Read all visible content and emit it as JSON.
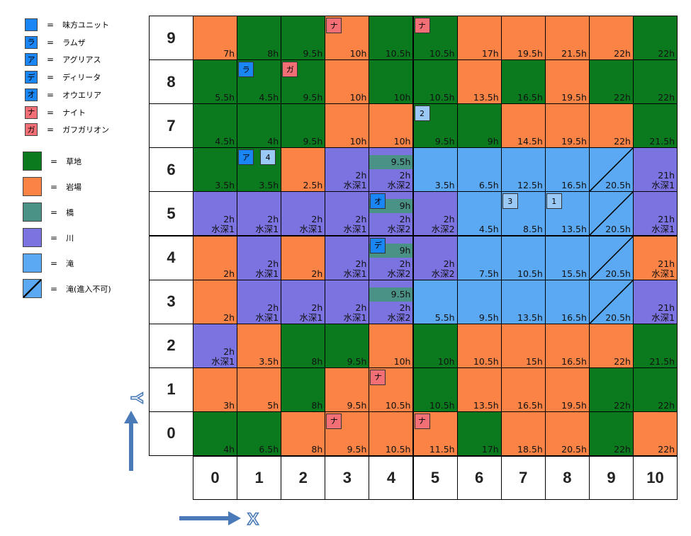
{
  "colors": {
    "grass": "#0b7a1f",
    "rock": "#fb8345",
    "bridge": "#4a9186",
    "river": "#7b73e0",
    "waterfall": "#5ba8f3",
    "ally": "#1a86f5",
    "enemy": "#f27075",
    "num_unit": "#9bc9f6",
    "arrow": "#4a7bb8"
  },
  "legend": {
    "units": [
      {
        "swatch_text": "",
        "swatch": "ally",
        "label": "味方ユニット"
      },
      {
        "swatch_text": "ラ",
        "swatch": "ally",
        "label": "ラムザ"
      },
      {
        "swatch_text": "ア",
        "swatch": "ally",
        "label": "アグリアス"
      },
      {
        "swatch_text": "デ",
        "swatch": "ally",
        "label": "ディリータ"
      },
      {
        "swatch_text": "オ",
        "swatch": "ally",
        "label": "オウエリア"
      },
      {
        "swatch_text": "ナ",
        "swatch": "enemy",
        "label": "ナイト"
      },
      {
        "swatch_text": "ガ",
        "swatch": "enemy",
        "label": "ガフガリオン"
      }
    ],
    "terrain": [
      {
        "swatch": "grass",
        "label": "草地"
      },
      {
        "swatch": "rock",
        "label": "岩場"
      },
      {
        "swatch": "bridge",
        "label": "橋"
      },
      {
        "swatch": "river",
        "label": "川"
      },
      {
        "swatch": "waterfall",
        "label": "滝"
      },
      {
        "swatch": "blocked",
        "label": "滝(進入不可)"
      }
    ],
    "eq": "="
  },
  "axis": {
    "x_label": "X",
    "y_label": "Y",
    "cols": [
      "0",
      "1",
      "2",
      "3",
      "4",
      "5",
      "6",
      "7",
      "8",
      "9",
      "10"
    ],
    "rows": [
      "9",
      "8",
      "7",
      "6",
      "5",
      "4",
      "3",
      "2",
      "1",
      "0"
    ]
  },
  "grid": [
    [
      {
        "t": "rock",
        "h": "7h"
      },
      {
        "t": "grass",
        "h": "8h"
      },
      {
        "t": "grass",
        "h": "9.5h"
      },
      {
        "t": "rock",
        "h": "10h",
        "u": {
          "k": "enemy",
          "s": "ナ"
        }
      },
      {
        "t": "grass",
        "h": "10.5h"
      },
      {
        "t": "grass",
        "h": "10.5h",
        "u": {
          "k": "enemy",
          "s": "ナ"
        }
      },
      {
        "t": "rock",
        "h": "17h"
      },
      {
        "t": "rock",
        "h": "19.5h"
      },
      {
        "t": "rock",
        "h": "21.5h"
      },
      {
        "t": "rock",
        "h": "22h"
      },
      {
        "t": "grass",
        "h": "22h"
      }
    ],
    [
      {
        "t": "grass",
        "h": "5.5h"
      },
      {
        "t": "grass",
        "h": "4.5h",
        "u": {
          "k": "ally",
          "s": "ラ"
        }
      },
      {
        "t": "grass",
        "h": "9.5h",
        "u": {
          "k": "enemy",
          "s": "ガ"
        }
      },
      {
        "t": "rock",
        "h": "10h"
      },
      {
        "t": "grass",
        "h": "10h"
      },
      {
        "t": "grass",
        "h": "10.5h"
      },
      {
        "t": "rock",
        "h": "13.5h"
      },
      {
        "t": "grass",
        "h": "16.5h"
      },
      {
        "t": "rock",
        "h": "19.5h"
      },
      {
        "t": "grass",
        "h": "22h"
      },
      {
        "t": "grass",
        "h": "22h"
      }
    ],
    [
      {
        "t": "grass",
        "h": "4.5h"
      },
      {
        "t": "grass",
        "h": "4h"
      },
      {
        "t": "grass",
        "h": "9.5h"
      },
      {
        "t": "rock",
        "h": "10h"
      },
      {
        "t": "rock",
        "h": "10h"
      },
      {
        "t": "grass",
        "h": "9.5h",
        "u": {
          "k": "num",
          "s": "2"
        }
      },
      {
        "t": "grass",
        "h": "9h"
      },
      {
        "t": "rock",
        "h": "14.5h"
      },
      {
        "t": "rock",
        "h": "19.5h"
      },
      {
        "t": "rock",
        "h": "22h"
      },
      {
        "t": "grass",
        "h": "21.5h"
      }
    ],
    [
      {
        "t": "grass",
        "h": "3.5h"
      },
      {
        "t": "grass",
        "h": "3.5h",
        "u": {
          "k": "ally",
          "s": "ア"
        },
        "u2": {
          "k": "num",
          "s": "4"
        }
      },
      {
        "t": "rock",
        "h": "2.5h"
      },
      {
        "t": "river",
        "h": "2h",
        "d": "水深1"
      },
      {
        "t": "bridgeriver",
        "b": "9.5h",
        "h": "2h",
        "d": "水深2"
      },
      {
        "t": "waterfall",
        "h": "3.5h"
      },
      {
        "t": "waterfall",
        "h": "6.5h"
      },
      {
        "t": "waterfall",
        "h": "12.5h"
      },
      {
        "t": "waterfall",
        "h": "16.5h"
      },
      {
        "t": "blocked",
        "h": "20.5h"
      },
      {
        "t": "river",
        "h": "21h",
        "d": "水深1"
      }
    ],
    [
      {
        "t": "river",
        "h": "2h",
        "d": "水深1"
      },
      {
        "t": "river",
        "h": "2h",
        "d": "水深1"
      },
      {
        "t": "river",
        "h": "2h",
        "d": "水深1"
      },
      {
        "t": "river",
        "h": "2h",
        "d": "水深1"
      },
      {
        "t": "bridgeriver",
        "b": "9h",
        "h": "2h",
        "d": "水深2",
        "u": {
          "k": "ally",
          "s": "オ"
        }
      },
      {
        "t": "river",
        "h": "2h",
        "d": "水深2"
      },
      {
        "t": "waterfall",
        "h": "4.5h"
      },
      {
        "t": "waterfall",
        "h": "8.5h",
        "u": {
          "k": "num",
          "s": "3"
        }
      },
      {
        "t": "waterfall",
        "h": "13.5h",
        "u": {
          "k": "num",
          "s": "1"
        }
      },
      {
        "t": "blocked",
        "h": "20.5h"
      },
      {
        "t": "river",
        "h": "21h",
        "d": "水深1"
      }
    ],
    [
      {
        "t": "rock",
        "h": "2h"
      },
      {
        "t": "river",
        "h": "2h",
        "d": "水深1"
      },
      {
        "t": "rock",
        "h": "2h"
      },
      {
        "t": "river",
        "h": "2h",
        "d": "水深1"
      },
      {
        "t": "bridgeriver",
        "b": "9h",
        "h": "2h",
        "d": "水深2",
        "u": {
          "k": "ally",
          "s": "デ"
        }
      },
      {
        "t": "river",
        "h": "2h",
        "d": "水深2"
      },
      {
        "t": "waterfall",
        "h": "7.5h"
      },
      {
        "t": "waterfall",
        "h": "10.5h"
      },
      {
        "t": "waterfall",
        "h": "15.5h"
      },
      {
        "t": "blocked",
        "h": "20.5h"
      },
      {
        "t": "rock",
        "h": "21h",
        "d": "水深1"
      }
    ],
    [
      {
        "t": "rock",
        "h": "2h"
      },
      {
        "t": "river",
        "h": "2h",
        "d": "水深1"
      },
      {
        "t": "river",
        "h": "2h",
        "d": "水深1"
      },
      {
        "t": "river",
        "h": "2h",
        "d": "水深1"
      },
      {
        "t": "bridgeriver",
        "b": "9.5h",
        "h": "2h",
        "d": "水深2"
      },
      {
        "t": "waterfall",
        "h": "5.5h"
      },
      {
        "t": "waterfall",
        "h": "9.5h"
      },
      {
        "t": "waterfall",
        "h": "13.5h"
      },
      {
        "t": "waterfall",
        "h": "16.5h"
      },
      {
        "t": "blocked",
        "h": "20.5h"
      },
      {
        "t": "river",
        "h": "21h",
        "d": "水深1"
      }
    ],
    [
      {
        "t": "river",
        "h": "2h",
        "d": "水深1"
      },
      {
        "t": "rock",
        "h": "3.5h"
      },
      {
        "t": "grass",
        "h": "8h"
      },
      {
        "t": "grass",
        "h": "9.5h"
      },
      {
        "t": "rock",
        "h": "10h"
      },
      {
        "t": "grass",
        "h": "10h"
      },
      {
        "t": "rock",
        "h": "10.5h"
      },
      {
        "t": "rock",
        "h": "15h"
      },
      {
        "t": "rock",
        "h": "16.5h"
      },
      {
        "t": "rock",
        "h": "22h"
      },
      {
        "t": "grass",
        "h": "21.5h"
      }
    ],
    [
      {
        "t": "rock",
        "h": "3h"
      },
      {
        "t": "rock",
        "h": "5h"
      },
      {
        "t": "grass",
        "h": "8h"
      },
      {
        "t": "rock",
        "h": "9.5h"
      },
      {
        "t": "rock",
        "h": "10.5h",
        "u": {
          "k": "enemy",
          "s": "ナ"
        }
      },
      {
        "t": "grass",
        "h": "10.5h"
      },
      {
        "t": "rock",
        "h": "13.5h"
      },
      {
        "t": "rock",
        "h": "16.5h"
      },
      {
        "t": "rock",
        "h": "19.5h"
      },
      {
        "t": "grass",
        "h": "22h"
      },
      {
        "t": "grass",
        "h": "22h"
      }
    ],
    [
      {
        "t": "grass",
        "h": "4h"
      },
      {
        "t": "grass",
        "h": "6.5h"
      },
      {
        "t": "rock",
        "h": "8h"
      },
      {
        "t": "rock",
        "h": "9.5h",
        "u": {
          "k": "enemy",
          "s": "ナ"
        }
      },
      {
        "t": "rock",
        "h": "10.5h"
      },
      {
        "t": "rock",
        "h": "11.5h",
        "u": {
          "k": "enemy",
          "s": "ナ"
        }
      },
      {
        "t": "grass",
        "h": "17h"
      },
      {
        "t": "rock",
        "h": "18.5h"
      },
      {
        "t": "rock",
        "h": "20.5h"
      },
      {
        "t": "grass",
        "h": "22h"
      },
      {
        "t": "rock",
        "h": "22h"
      }
    ]
  ]
}
